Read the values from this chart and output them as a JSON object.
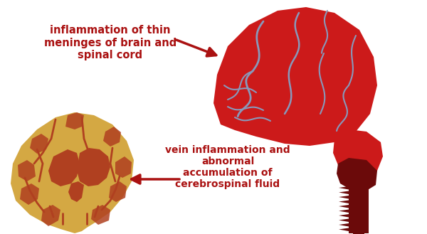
{
  "background_color": "#ffffff",
  "text1": "inflammation of thin\nmeninges of brain and\nspinal cord",
  "text2": "vein inflammation and\nabnormal\naccumulation of\ncerebrospinal fluid",
  "text_color": "#aa1111",
  "arrow_color": "#aa1111",
  "brain_red": "#cc1a1a",
  "brain_dark_red": "#6b0a0a",
  "brain_vein_color": "#8899bb",
  "brain_yellow": "#d4a843",
  "brain_brown": "#b04020",
  "figsize": [
    6.0,
    3.29
  ],
  "dpi": 100
}
